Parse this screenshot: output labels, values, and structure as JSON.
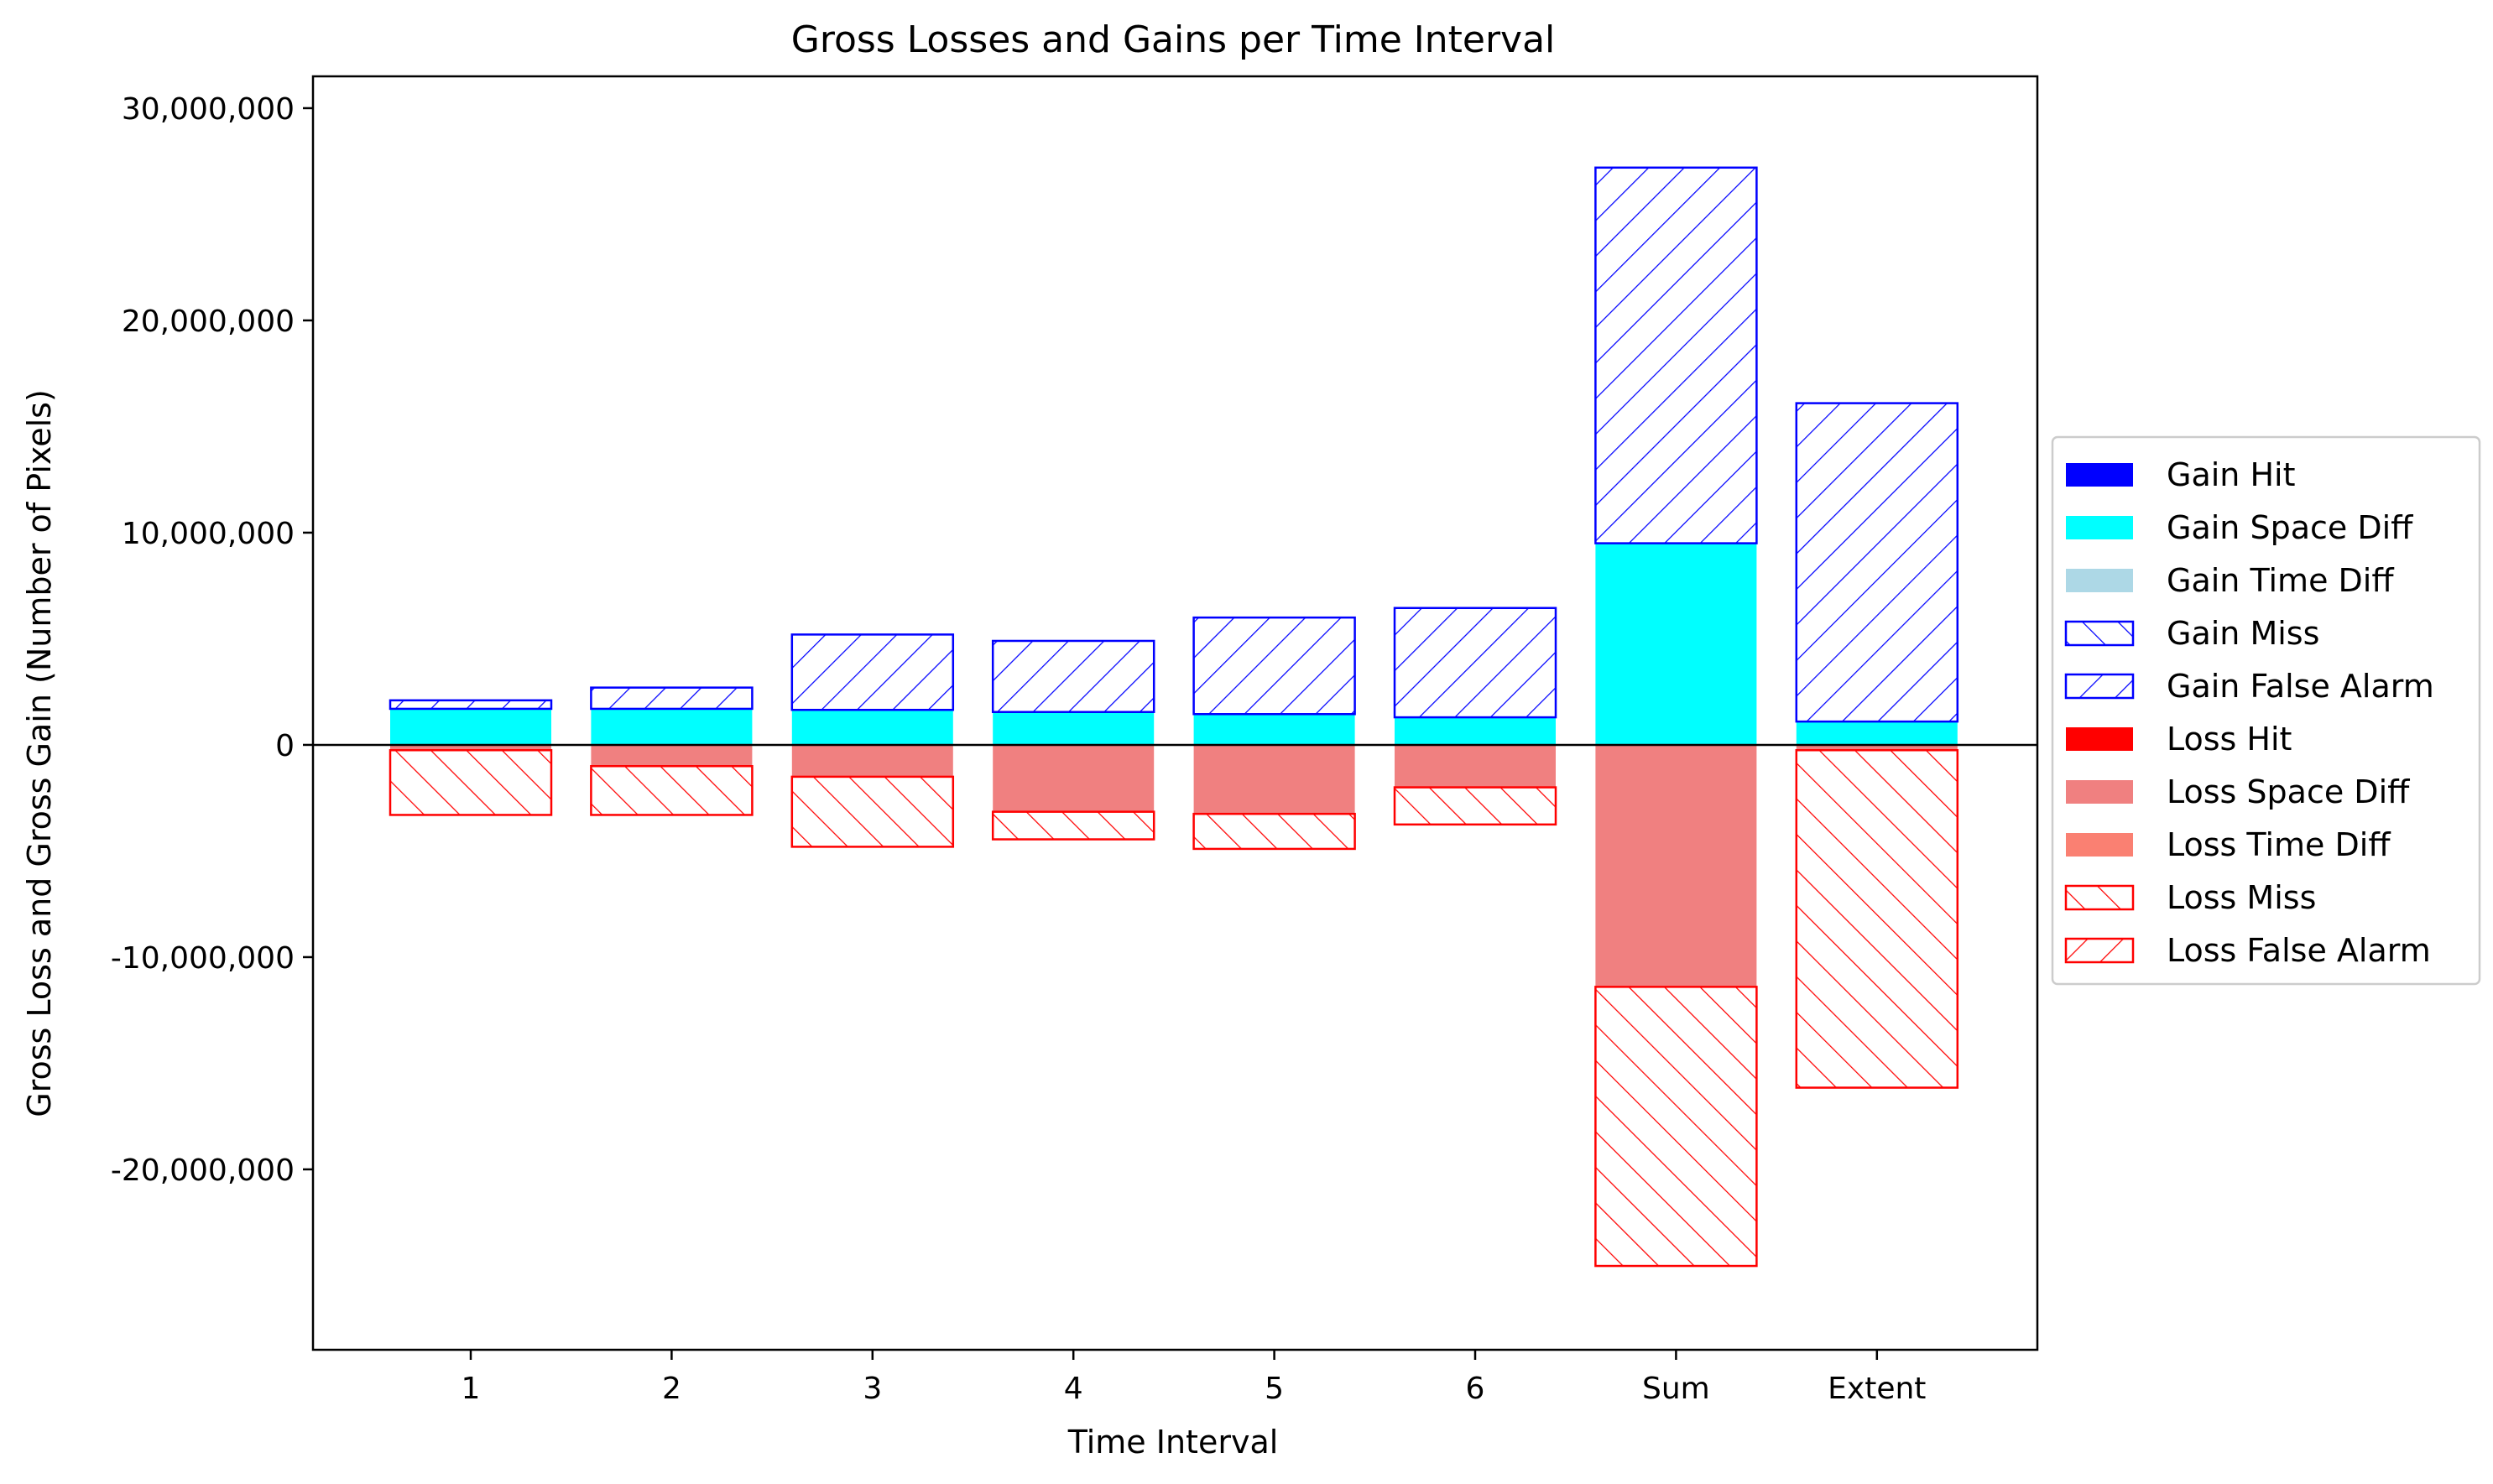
{
  "chart_data": {
    "type": "bar",
    "title": "Gross Losses and Gains per Time Interval",
    "xlabel": "Time Interval",
    "ylabel": "Gross Loss and Gross Gain (Number of Pixels)",
    "categories": [
      "1",
      "2",
      "3",
      "4",
      "5",
      "6",
      "Sum",
      "Extent"
    ],
    "ylim": [
      -28500000,
      31500000
    ],
    "yticks": [
      -20000000,
      -10000000,
      0,
      10000000,
      20000000,
      30000000
    ],
    "ytick_labels": [
      "-20,000,000",
      "-10,000,000",
      "0",
      "10,000,000",
      "20,000,000",
      "30,000,000"
    ],
    "zero_line": true,
    "grid": false,
    "legend_position": "center-right",
    "series": [
      {
        "name": "Gain Hit",
        "direction": "gain",
        "color": "#0000FF",
        "hatch": "none",
        "values": [
          0,
          0,
          0,
          0,
          0,
          0,
          0,
          0
        ]
      },
      {
        "name": "Gain Space Diff",
        "direction": "gain",
        "color": "#00FFFF",
        "hatch": "none",
        "values": [
          1700000,
          1700000,
          1650000,
          1550000,
          1450000,
          1300000,
          9500000,
          1100000
        ]
      },
      {
        "name": "Gain Time Diff",
        "direction": "gain",
        "color": "#ADD8E6",
        "hatch": "none",
        "values": [
          0,
          0,
          0,
          0,
          0,
          0,
          0,
          0
        ]
      },
      {
        "name": "Gain Miss",
        "direction": "gain",
        "color": "#0000FF",
        "hatch": "back",
        "values": [
          0,
          0,
          0,
          0,
          0,
          0,
          0,
          0
        ]
      },
      {
        "name": "Gain False Alarm",
        "direction": "gain",
        "color": "#0000FF",
        "hatch": "forward",
        "values": [
          400000,
          1000000,
          3550000,
          3350000,
          4550000,
          5150000,
          17700000,
          15000000
        ]
      },
      {
        "name": "Loss Hit",
        "direction": "loss",
        "color": "#FF0000",
        "hatch": "none",
        "values": [
          0,
          0,
          0,
          0,
          0,
          0,
          0,
          0
        ]
      },
      {
        "name": "Loss Space Diff",
        "direction": "loss",
        "color": "#F08080",
        "hatch": "none",
        "values": [
          250000,
          1000000,
          1500000,
          3150000,
          3250000,
          2000000,
          11400000,
          250000
        ]
      },
      {
        "name": "Loss Time Diff",
        "direction": "loss",
        "color": "#FA8072",
        "hatch": "none",
        "values": [
          0,
          0,
          0,
          0,
          0,
          0,
          0,
          0
        ]
      },
      {
        "name": "Loss Miss",
        "direction": "loss",
        "color": "#FF0000",
        "hatch": "back",
        "values": [
          3050000,
          2300000,
          3300000,
          1300000,
          1650000,
          1750000,
          13150000,
          15900000
        ]
      },
      {
        "name": "Loss False Alarm",
        "direction": "loss",
        "color": "#FF0000",
        "hatch": "forward",
        "values": [
          0,
          0,
          0,
          0,
          0,
          0,
          0,
          0
        ]
      }
    ]
  }
}
